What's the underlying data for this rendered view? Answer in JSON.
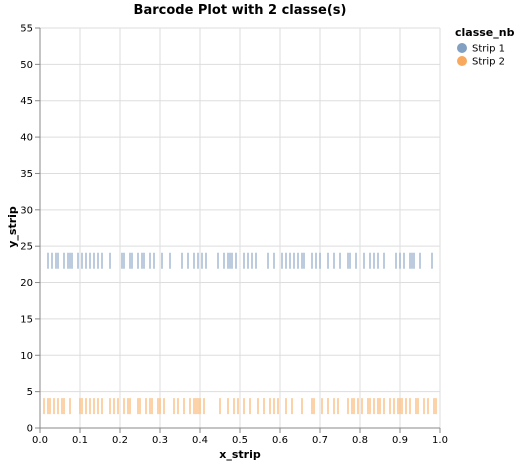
{
  "chart_data": {
    "type": "scatter",
    "mark": "tick",
    "title": "Barcode Plot with 2 classe(s)",
    "xlabel": "x_strip",
    "ylabel": "y_strip",
    "xlim": [
      0,
      1
    ],
    "ylim": [
      0,
      55
    ],
    "x_ticks": [
      "0.0",
      "0.1",
      "0.2",
      "0.3",
      "0.4",
      "0.5",
      "0.6",
      "0.7",
      "0.8",
      "0.9",
      "1.0"
    ],
    "y_ticks": [
      "0",
      "5",
      "10",
      "15",
      "20",
      "25",
      "30",
      "35",
      "40",
      "45",
      "50",
      "55"
    ],
    "grid": true,
    "legend": {
      "title": "classe_nb",
      "placement": "top-right"
    },
    "series": [
      {
        "name": "Strip 1",
        "color": "#4c78a8",
        "y_center": 23,
        "x": [
          0.02,
          0.03,
          0.04,
          0.045,
          0.06,
          0.07,
          0.075,
          0.08,
          0.095,
          0.105,
          0.115,
          0.125,
          0.135,
          0.145,
          0.155,
          0.175,
          0.205,
          0.21,
          0.225,
          0.23,
          0.245,
          0.255,
          0.26,
          0.275,
          0.285,
          0.305,
          0.325,
          0.355,
          0.37,
          0.385,
          0.395,
          0.405,
          0.415,
          0.445,
          0.46,
          0.47,
          0.475,
          0.48,
          0.49,
          0.51,
          0.52,
          0.53,
          0.54,
          0.57,
          0.585,
          0.605,
          0.615,
          0.625,
          0.635,
          0.645,
          0.655,
          0.66,
          0.68,
          0.69,
          0.7,
          0.72,
          0.735,
          0.75,
          0.77,
          0.775,
          0.79,
          0.81,
          0.825,
          0.835,
          0.845,
          0.86,
          0.89,
          0.9,
          0.91,
          0.925,
          0.93,
          0.935,
          0.95,
          0.98
        ]
      },
      {
        "name": "Strip 2",
        "color": "#f58518",
        "y_center": 3,
        "x": [
          0.0,
          0.01,
          0.02,
          0.025,
          0.035,
          0.045,
          0.055,
          0.06,
          0.075,
          0.1,
          0.105,
          0.115,
          0.125,
          0.135,
          0.145,
          0.155,
          0.175,
          0.185,
          0.195,
          0.21,
          0.22,
          0.225,
          0.245,
          0.25,
          0.265,
          0.275,
          0.28,
          0.295,
          0.3,
          0.31,
          0.335,
          0.345,
          0.36,
          0.375,
          0.385,
          0.39,
          0.395,
          0.4,
          0.41,
          0.45,
          0.47,
          0.485,
          0.495,
          0.51,
          0.525,
          0.545,
          0.56,
          0.575,
          0.585,
          0.595,
          0.615,
          0.63,
          0.655,
          0.68,
          0.685,
          0.705,
          0.72,
          0.735,
          0.745,
          0.77,
          0.78,
          0.785,
          0.795,
          0.805,
          0.82,
          0.825,
          0.835,
          0.845,
          0.85,
          0.86,
          0.875,
          0.885,
          0.895,
          0.9,
          0.905,
          0.915,
          0.925,
          0.94,
          0.945,
          0.96,
          0.97,
          0.985,
          0.99
        ]
      }
    ]
  }
}
